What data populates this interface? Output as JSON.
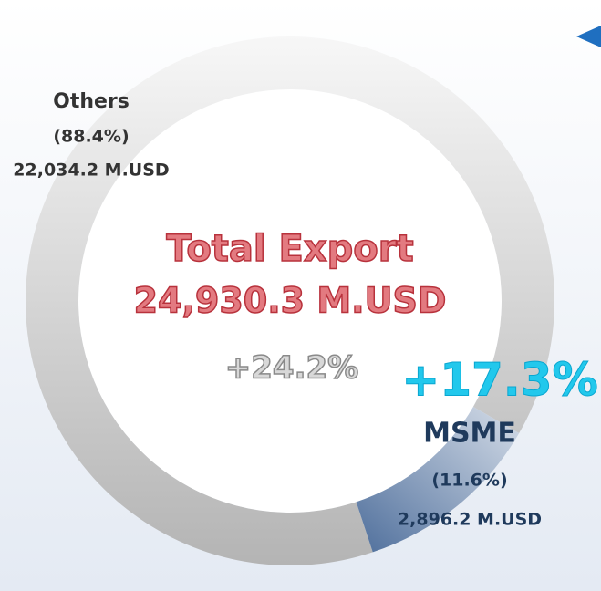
{
  "chart_data": {
    "type": "donut",
    "categories": [
      "Others",
      "MSME"
    ],
    "values": [
      88.4,
      11.6
    ],
    "value_labels": [
      "(88.4%)",
      "(11.6%)"
    ],
    "amounts": [
      22034.2,
      2896.2
    ],
    "amount_labels": [
      "22,034.2 M.USD",
      "2,896.2 M.USD"
    ],
    "growth_labels": [
      null,
      "+17.3%"
    ],
    "colors": [
      "#b4b4b4",
      "#4f6f9c"
    ],
    "center": {
      "title": "Total Export",
      "total_label": "24,930.3 M.USD",
      "growth_label": "+24.2%"
    }
  }
}
